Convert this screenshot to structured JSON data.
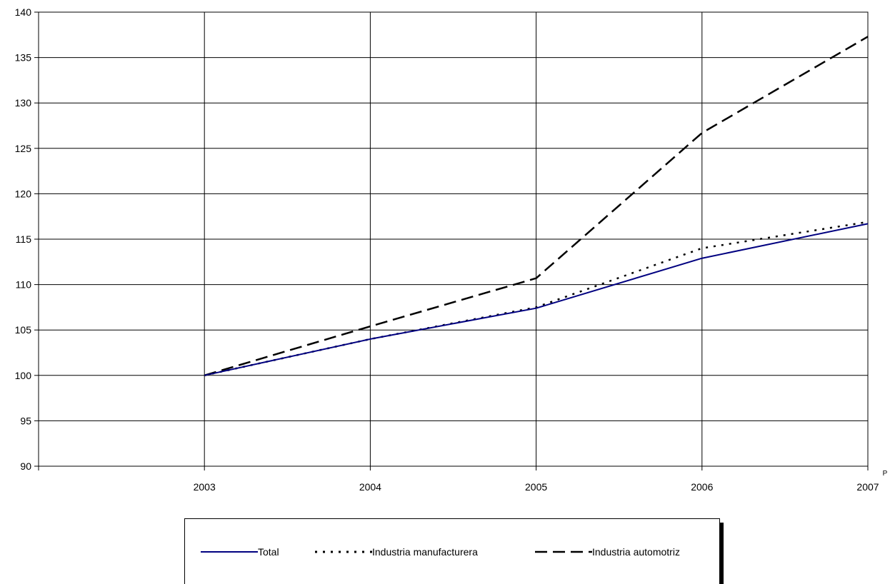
{
  "chart_data": {
    "type": "line",
    "x": [
      "2003",
      "2004",
      "2005",
      "2006",
      "2007"
    ],
    "x_suffix": {
      "2007": "P"
    },
    "ylim": [
      90,
      140
    ],
    "yticks": [
      90,
      95,
      100,
      105,
      110,
      115,
      120,
      125,
      130,
      135,
      140
    ],
    "grid": true,
    "legend_position": "bottom",
    "series": [
      {
        "name": "Total",
        "values": [
          100,
          104.0,
          107.4,
          112.9,
          116.7
        ],
        "color": "#000080",
        "style": "solid"
      },
      {
        "name": "Industria manufacturera",
        "values": [
          100,
          104.0,
          107.5,
          114.0,
          116.9
        ],
        "color": "#000000",
        "style": "dotted"
      },
      {
        "name": "Industria automotriz",
        "values": [
          100,
          105.4,
          110.7,
          126.7,
          137.3
        ],
        "color": "#000000",
        "style": "dashed"
      }
    ]
  }
}
